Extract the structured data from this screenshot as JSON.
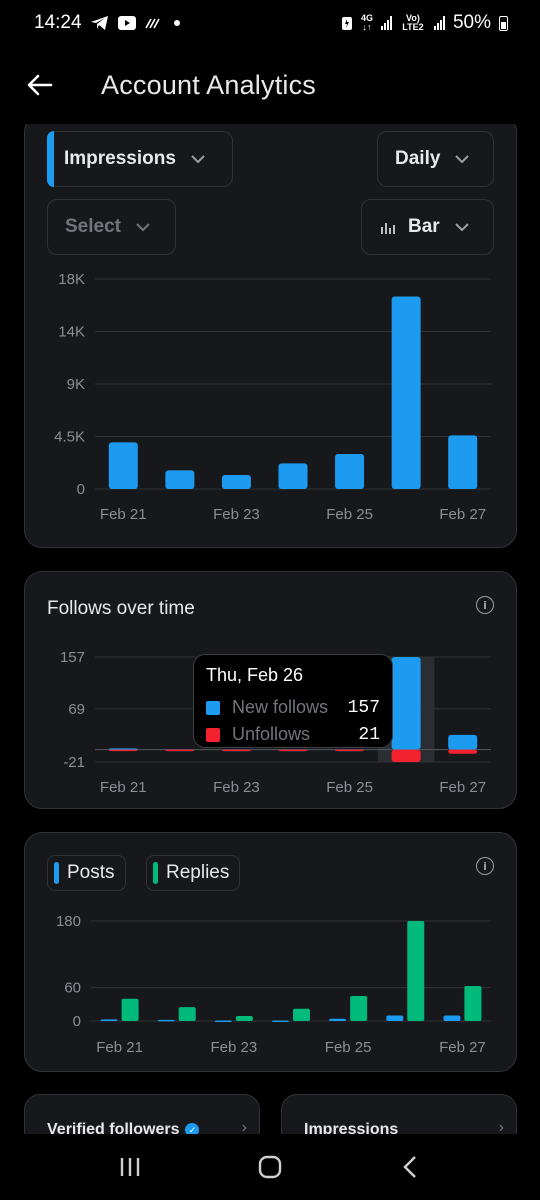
{
  "status": {
    "time": "14:24",
    "battery": "50%",
    "network": "4G",
    "volte": "Vo) LTE2"
  },
  "header": {
    "title": "Account Analytics"
  },
  "controls": {
    "metric": "Impressions",
    "period": "Daily",
    "select": "Select",
    "chart_type": "Bar"
  },
  "follows": {
    "title": "Follows over time"
  },
  "tooltip": {
    "date": "Thu, Feb 26",
    "new_label": "New follows",
    "new_value": "157",
    "unf_label": "Unfollows",
    "unf_value": "21"
  },
  "posts": {
    "posts_label": "Posts",
    "replies_label": "Replies"
  },
  "mini_cards": [
    {
      "label": "Verified followers"
    },
    {
      "label": "Impressions"
    }
  ],
  "colors": {
    "blue": "#1d9bf0",
    "red": "#f4212e",
    "green": "#00ba7c",
    "card": "#16181c"
  },
  "chart_data": [
    {
      "type": "bar",
      "ylabel": "",
      "categories": [
        "Feb 21",
        "Feb 22",
        "Feb 23",
        "Feb 24",
        "Feb 25",
        "Feb 26",
        "Feb 27"
      ],
      "x_tick_labels": [
        "Feb 21",
        "Feb 23",
        "Feb 25",
        "Feb 27"
      ],
      "y_tick_labels": [
        "0",
        "4.5K",
        "9K",
        "14K",
        "18K"
      ],
      "y_ticks": [
        0,
        4500,
        9000,
        13500,
        18000
      ],
      "values": [
        4000,
        1600,
        1200,
        2200,
        3000,
        16500,
        4600
      ],
      "ylim": [
        0,
        18000
      ]
    },
    {
      "type": "bar",
      "categories": [
        "Feb 21",
        "Feb 22",
        "Feb 23",
        "Feb 24",
        "Feb 25",
        "Feb 26",
        "Feb 27"
      ],
      "x_tick_labels": [
        "Feb 21",
        "Feb 23",
        "Feb 25",
        "Feb 27"
      ],
      "y_tick_labels": [
        "-21",
        "69",
        "157"
      ],
      "y_ticks": [
        -21,
        69,
        157
      ],
      "series": [
        {
          "name": "New follows",
          "values": [
            2,
            0,
            0,
            0,
            0,
            157,
            25
          ]
        },
        {
          "name": "Unfollows",
          "values": [
            -2,
            -1,
            0,
            0,
            -2,
            -21,
            -7
          ]
        }
      ],
      "ylim": [
        -21,
        157
      ],
      "highlight": "Feb 26"
    },
    {
      "type": "bar",
      "categories": [
        "Feb 21",
        "Feb 22",
        "Feb 23",
        "Feb 24",
        "Feb 25",
        "Feb 26",
        "Feb 27"
      ],
      "x_tick_labels": [
        "Feb 21",
        "Feb 23",
        "Feb 25",
        "Feb 27"
      ],
      "y_tick_labels": [
        "0",
        "60",
        "180"
      ],
      "y_ticks": [
        0,
        60,
        180
      ],
      "series": [
        {
          "name": "Posts",
          "values": [
            3,
            2,
            1,
            1,
            4,
            10,
            10
          ]
        },
        {
          "name": "Replies",
          "values": [
            40,
            25,
            9,
            22,
            45,
            180,
            63
          ]
        }
      ],
      "ylim": [
        0,
        180
      ]
    }
  ]
}
